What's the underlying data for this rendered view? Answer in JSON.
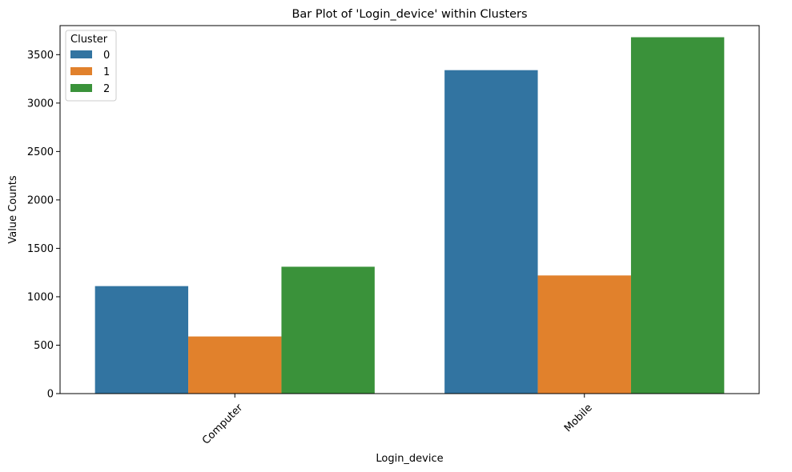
{
  "chart_data": {
    "type": "bar",
    "title": "Bar Plot of 'Login_device' within Clusters",
    "xlabel": "Login_device",
    "ylabel": "Value Counts",
    "categories": [
      "Computer",
      "Mobile"
    ],
    "series": [
      {
        "name": "0",
        "values": [
          1110,
          3340
        ],
        "color": "#3274a1"
      },
      {
        "name": "1",
        "values": [
          590,
          1220
        ],
        "color": "#e1812c"
      },
      {
        "name": "2",
        "values": [
          1310,
          3680
        ],
        "color": "#3a923a"
      }
    ],
    "ylim": [
      0,
      3800
    ],
    "yticks": [
      0,
      500,
      1000,
      1500,
      2000,
      2500,
      3000,
      3500
    ],
    "legend": {
      "title": "Cluster",
      "placement": "top-left"
    },
    "grid": false,
    "xtick_rotation": 45
  }
}
